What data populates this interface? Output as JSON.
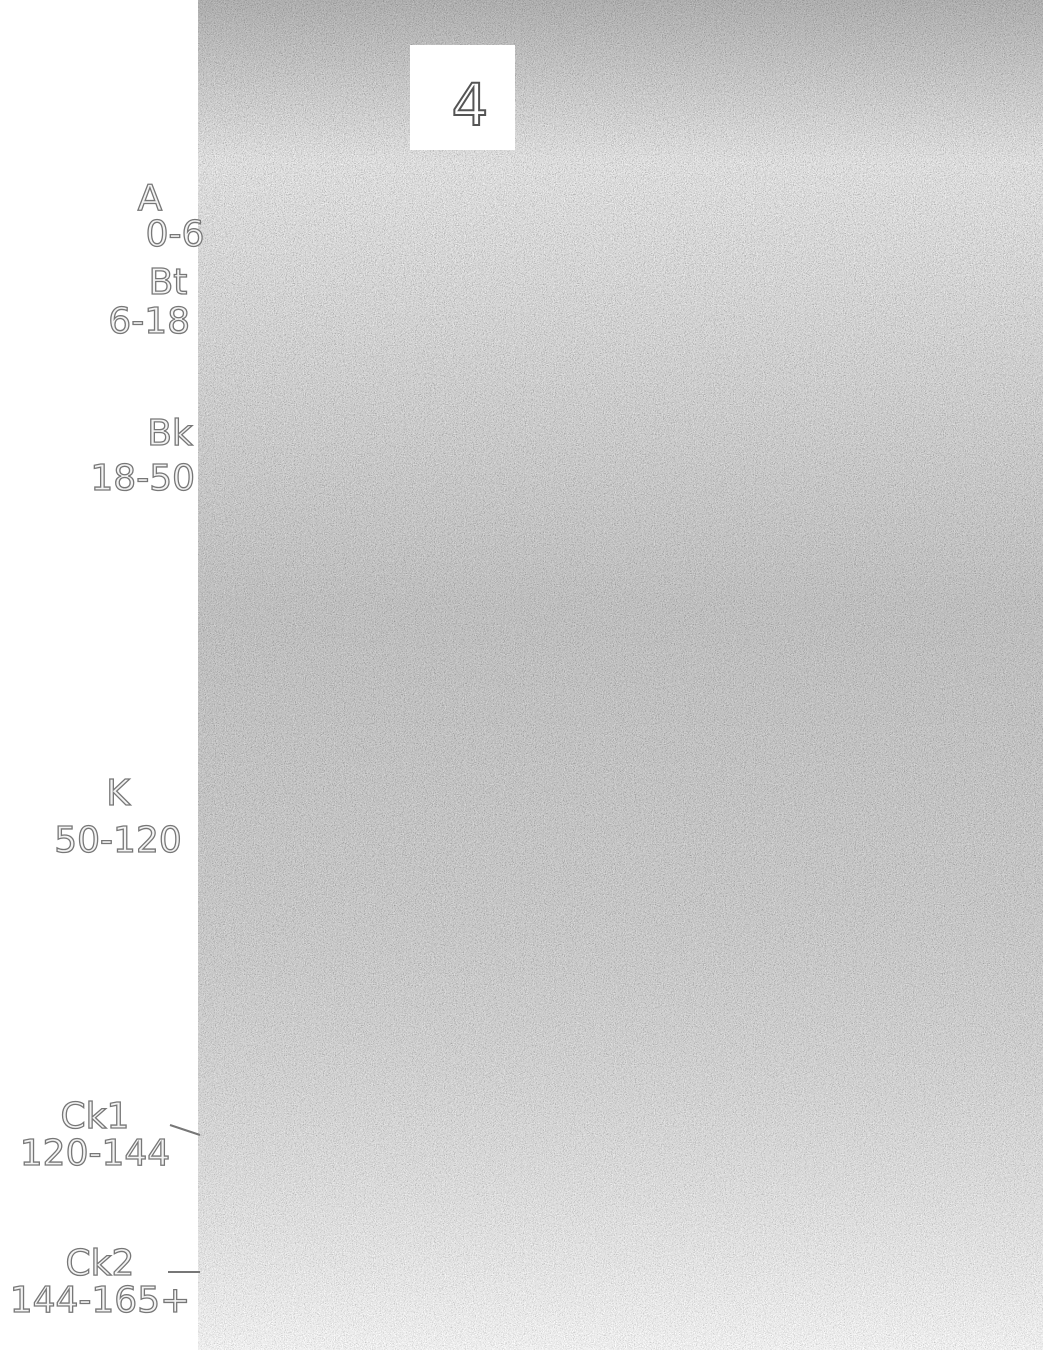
{
  "photo_tag": "4",
  "horizons": [
    {
      "name": "A",
      "depth": "0-6"
    },
    {
      "name": "Bt",
      "depth": "6-18"
    },
    {
      "name": "Bk",
      "depth": "18-50"
    },
    {
      "name": "K",
      "depth": "50-120"
    },
    {
      "name": "Ck1",
      "depth": "120-144"
    },
    {
      "name": "Ck2",
      "depth": "144-165+"
    }
  ]
}
